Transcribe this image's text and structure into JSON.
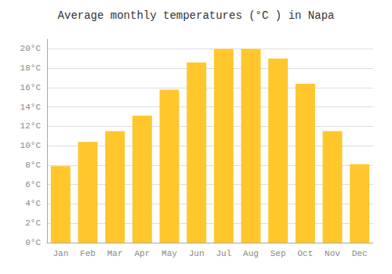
{
  "chart_data": {
    "type": "bar",
    "title": "Average monthly temperatures (°C ) in Napa",
    "categories": [
      "Jan",
      "Feb",
      "Mar",
      "Apr",
      "May",
      "Jun",
      "Jul",
      "Aug",
      "Sep",
      "Oct",
      "Nov",
      "Dec"
    ],
    "values": [
      7.9,
      10.4,
      11.5,
      13.1,
      15.8,
      18.6,
      20.0,
      20.0,
      19.0,
      16.4,
      11.5,
      8.1
    ],
    "color": "#FFC72C",
    "ylim": [
      0,
      21
    ],
    "yticks": [
      {
        "value": 0,
        "label": "0°C"
      },
      {
        "value": 2,
        "label": "2°C"
      },
      {
        "value": 4,
        "label": "4°C"
      },
      {
        "value": 6,
        "label": "6°C"
      },
      {
        "value": 8,
        "label": "8°C"
      },
      {
        "value": 10,
        "label": "10°C"
      },
      {
        "value": 12,
        "label": "12°C"
      },
      {
        "value": 14,
        "label": "14°C"
      },
      {
        "value": 16,
        "label": "16°C"
      },
      {
        "value": 18,
        "label": "18°C"
      },
      {
        "value": 20,
        "label": "20°C"
      }
    ],
    "grid": true
  }
}
